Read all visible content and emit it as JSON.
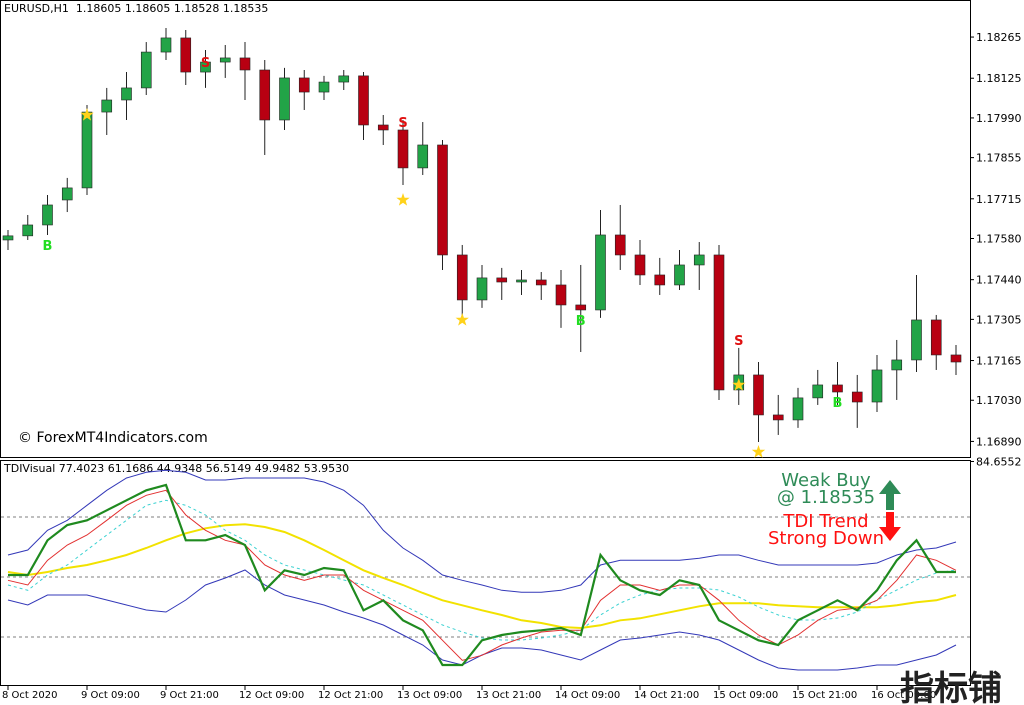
{
  "chart_data": [
    {
      "type": "candlestick",
      "title": "EURUSD,H1  1.18605 1.18605 1.18528 1.18535",
      "watermark": "© ForexMT4Indicators.com",
      "categories": [
        "8 Oct 2020",
        null,
        null,
        null,
        "9 Oct 09:00",
        null,
        null,
        null,
        "9 Oct 21:00",
        null,
        null,
        null,
        "12 Oct 09:00",
        null,
        null,
        null,
        "12 Oct 21:00",
        null,
        null,
        null,
        "13 Oct 09:00",
        null,
        null,
        null,
        "13 Oct 21:00",
        null,
        null,
        null,
        "14 Oct 09:00",
        null,
        null,
        null,
        "14 Oct 21:00",
        null,
        null,
        null,
        "15 Oct 09:00",
        null,
        null,
        null,
        "15 Oct 21:00",
        null,
        null,
        null,
        "16 Oct 09:00",
        null,
        null,
        null,
        null
      ],
      "open": [
        1.17575,
        1.17589,
        1.17626,
        1.17711,
        1.17752,
        1.1801,
        1.18051,
        1.18092,
        1.18214,
        1.18262,
        1.18146,
        1.1818,
        1.18194,
        1.18153,
        1.17983,
        1.18126,
        1.18078,
        1.18112,
        1.18133,
        1.17966,
        1.17949,
        1.1782,
        1.17898,
        1.17524,
        1.17371,
        1.17446,
        1.17432,
        1.17439,
        1.17422,
        1.17354,
        1.17337,
        1.17592,
        1.17524,
        1.17456,
        1.17422,
        1.1749,
        1.17524,
        1.17065,
        1.17116,
        1.1698,
        1.16963,
        1.17038,
        1.17082,
        1.17058,
        1.17024,
        1.17133,
        1.17167,
        1.17303,
        1.17184
      ],
      "high": [
        1.17609,
        1.1766,
        1.17728,
        1.17786,
        1.18034,
        1.18092,
        1.18146,
        1.18248,
        1.18296,
        1.18289,
        1.18221,
        1.18238,
        1.18248,
        1.18187,
        1.1816,
        1.18153,
        1.18133,
        1.18153,
        1.18146,
        1.18,
        1.17983,
        1.17976,
        1.17915,
        1.17558,
        1.1749,
        1.1748,
        1.17473,
        1.17466,
        1.17473,
        1.1749,
        1.17677,
        1.17694,
        1.17575,
        1.17514,
        1.17541,
        1.17568,
        1.17558,
        1.17208,
        1.1716,
        1.17048,
        1.17072,
        1.17133,
        1.1716,
        1.17116,
        1.17184,
        1.17235,
        1.17456,
        1.1732,
        1.17218
      ],
      "low": [
        1.17541,
        1.17575,
        1.17592,
        1.1767,
        1.17728,
        1.17932,
        1.17983,
        1.18068,
        1.18187,
        1.18102,
        1.18092,
        1.18126,
        1.18051,
        1.17864,
        1.17949,
        1.18017,
        1.18051,
        1.18085,
        1.17915,
        1.17898,
        1.17762,
        1.17796,
        1.17473,
        1.1731,
        1.17344,
        1.17371,
        1.17388,
        1.17371,
        1.17276,
        1.17194,
        1.1731,
        1.17473,
        1.17422,
        1.17388,
        1.17405,
        1.17405,
        1.17031,
        1.17014,
        1.16888,
        1.16912,
        1.16936,
        1.17014,
        1.17014,
        1.16936,
        1.1699,
        1.17031,
        1.17126,
        1.17133,
        1.17116
      ],
      "close": [
        1.17589,
        1.17626,
        1.17694,
        1.17752,
        1.1801,
        1.18051,
        1.18092,
        1.18214,
        1.18262,
        1.18146,
        1.1818,
        1.18194,
        1.18153,
        1.17983,
        1.18126,
        1.18078,
        1.18112,
        1.18133,
        1.17966,
        1.17949,
        1.1782,
        1.17898,
        1.17524,
        1.17371,
        1.17446,
        1.17432,
        1.17439,
        1.17422,
        1.17354,
        1.17337,
        1.17592,
        1.17524,
        1.17456,
        1.17422,
        1.1749,
        1.17524,
        1.17065,
        1.17116,
        1.1698,
        1.16963,
        1.17038,
        1.17082,
        1.17058,
        1.17024,
        1.17133,
        1.17167,
        1.17303,
        1.17184,
        1.1716
      ],
      "up_color": "#22a447",
      "down_color": "#b80012",
      "buy_signals": {
        "label": "B",
        "color": "#22dd22",
        "values": [
          null,
          null,
          1.17558,
          null,
          null,
          null,
          null,
          null,
          null,
          null,
          null,
          null,
          null,
          null,
          null,
          null,
          null,
          null,
          null,
          null,
          null,
          null,
          null,
          null,
          null,
          null,
          null,
          null,
          null,
          1.17303,
          null,
          null,
          null,
          null,
          null,
          null,
          null,
          null,
          null,
          null,
          null,
          null,
          1.17024,
          null,
          null,
          null,
          null,
          null,
          null
        ]
      },
      "sell_signals": {
        "label": "S",
        "color": "#e01010",
        "values": [
          null,
          null,
          null,
          null,
          null,
          null,
          null,
          null,
          null,
          null,
          1.1818,
          null,
          null,
          null,
          null,
          null,
          null,
          null,
          null,
          null,
          1.17976,
          null,
          null,
          null,
          null,
          null,
          null,
          null,
          null,
          null,
          null,
          null,
          null,
          null,
          null,
          null,
          null,
          1.17235,
          null,
          null,
          null,
          null,
          null,
          null,
          null,
          null,
          null,
          null,
          null
        ]
      },
      "stars": {
        "color": "#ffd21a",
        "values": [
          null,
          null,
          null,
          null,
          1.18,
          null,
          null,
          null,
          null,
          null,
          null,
          null,
          null,
          null,
          null,
          null,
          null,
          null,
          null,
          null,
          1.17711,
          null,
          null,
          1.17303,
          null,
          null,
          null,
          null,
          null,
          null,
          null,
          null,
          null,
          null,
          null,
          null,
          null,
          1.17082,
          1.16854,
          null,
          null,
          null,
          null,
          null,
          null,
          null,
          null,
          null,
          null
        ]
      },
      "ylim": [
        1.16837,
        1.18391
      ],
      "yticks": [
        1.18265,
        1.18125,
        {
          "value": 1.1799,
          "label": "1.17990"
        },
        1.17855,
        1.17715,
        {
          "value": 1.1758,
          "label": "1.17580"
        },
        {
          "value": 1.1744,
          "label": "1.17440"
        },
        1.17305,
        1.17165,
        {
          "value": 1.1703,
          "label": "1.17030"
        },
        {
          "value": 1.1689,
          "label": "1.16890"
        }
      ]
    },
    {
      "type": "line",
      "title": "TDIVisual 77.4023 61.1686 44.9348 56.5149 49.9482 53.9530",
      "ylim": [
        17.6,
        85.1
      ],
      "yticks": [
        84.6552
      ],
      "levels": [
        32,
        50,
        68
      ],
      "series": [
        {
          "color": "#3338b8",
          "width": 1,
          "values": [
            56.6,
            58.1,
            64,
            67,
            71.5,
            76,
            79.7,
            81.4,
            82,
            81.4,
            79.1,
            79.1,
            79.7,
            79.7,
            79.7,
            79.7,
            78.5,
            76,
            71.5,
            64,
            58.7,
            55,
            50.6,
            49,
            47.6,
            46,
            45.4,
            45.4,
            46,
            47.6,
            53.6,
            55,
            55,
            55,
            55,
            55.6,
            56.6,
            56.6,
            55,
            53.6,
            53.6,
            53.6,
            53.6,
            53.6,
            54.2,
            56.6,
            58.1,
            58.7,
            60.5
          ]
        },
        {
          "color": "#3338b8",
          "width": 1,
          "values": [
            43.1,
            41.6,
            44.6,
            44.6,
            44.6,
            43.1,
            41.6,
            40.1,
            39.5,
            43.1,
            47.6,
            49.7,
            52.1,
            47.6,
            44.6,
            43.1,
            41.6,
            39.5,
            37.7,
            35.6,
            32.6,
            29.6,
            25.1,
            23.6,
            26.6,
            28.7,
            28.7,
            28.1,
            26.6,
            25.1,
            28.1,
            31.1,
            31.7,
            32.6,
            33.5,
            32.6,
            31.1,
            28.1,
            25.1,
            22.7,
            22.1,
            22.1,
            22.1,
            22.7,
            23.6,
            23.6,
            25.1,
            26.6,
            29.6
          ]
        },
        {
          "color": "#f2e200",
          "width": 2,
          "values": [
            51.5,
            50.6,
            51.5,
            52.7,
            53.6,
            55,
            56.6,
            58.7,
            61,
            63.1,
            64.6,
            65.5,
            65.8,
            65,
            63.5,
            61,
            58.1,
            55,
            52,
            49.7,
            47.6,
            45.2,
            43,
            41.5,
            40,
            38.6,
            37,
            36.2,
            35,
            34.7,
            35.5,
            37,
            37.6,
            38.8,
            40,
            41.2,
            42.1,
            42.1,
            42.1,
            41.5,
            41.2,
            40.9,
            40.9,
            40.9,
            40.9,
            41.5,
            42.4,
            43,
            44.6
          ]
        },
        {
          "color": "#3cd2d2",
          "width": 1,
          "dashed": true,
          "values": [
            47.6,
            46,
            50.6,
            53.6,
            58.1,
            62.6,
            67,
            71.5,
            73,
            71.5,
            68.6,
            64,
            61,
            56.6,
            53.6,
            52.1,
            50.6,
            49.1,
            47.6,
            44.6,
            41.6,
            38.6,
            35.6,
            33.5,
            31.7,
            31.1,
            31.1,
            31.7,
            32.6,
            34.1,
            38.6,
            42.2,
            44.6,
            46.1,
            46.7,
            46.7,
            46.1,
            44,
            41,
            38.6,
            37.1,
            37.1,
            37.7,
            39.5,
            43.1,
            46.1,
            49.1,
            51.2,
            52.1
          ]
        },
        {
          "color": "#e23030",
          "width": 1,
          "values": [
            49,
            47.6,
            55,
            59.6,
            62.6,
            67,
            71.5,
            74.5,
            76,
            68.6,
            64,
            61,
            59.6,
            53.6,
            50.6,
            49,
            50.6,
            50.6,
            46,
            43,
            40,
            37,
            31,
            25,
            26.5,
            29.6,
            31.7,
            33.5,
            34,
            34,
            43,
            47.6,
            47.6,
            46,
            47.6,
            47.6,
            43,
            37,
            32.6,
            29.6,
            32.6,
            37,
            40,
            40.7,
            43,
            49,
            56.6,
            55,
            52
          ]
        },
        {
          "color": "#1f8a1f",
          "width": 2.2,
          "values": [
            50.6,
            50.6,
            61,
            65.6,
            67,
            70,
            73,
            76,
            77.6,
            61,
            61,
            62.6,
            59.6,
            46,
            52,
            50.6,
            52.7,
            52,
            40,
            43,
            37,
            34,
            23.6,
            23.6,
            31,
            32.6,
            33.5,
            34,
            34.7,
            32.6,
            56.6,
            49,
            46,
            44.6,
            49,
            47.6,
            37,
            34,
            31,
            29.6,
            37,
            40,
            43,
            40,
            46,
            55,
            61,
            51.5,
            51.5
          ]
        }
      ],
      "annotations": [
        {
          "lines": [
            "Weak Buy",
            "@ 1.18535"
          ],
          "color": "#2e8b57",
          "arrow": "up"
        },
        {
          "lines": [
            "TDI Trend",
            "Strong Down"
          ],
          "color": "#ff1010",
          "arrow": "down"
        }
      ]
    }
  ],
  "watermark": "指标铺"
}
